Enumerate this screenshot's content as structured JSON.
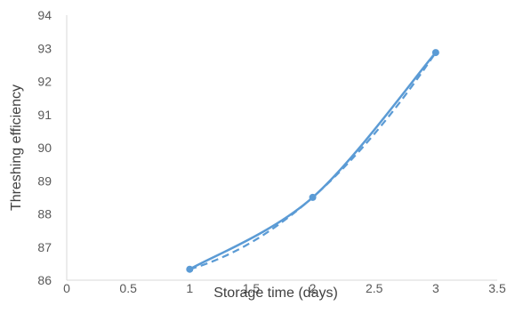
{
  "chart_data": {
    "type": "line",
    "title": "",
    "xlabel": "Storage time (days)",
    "ylabel": "Threshing efficiency",
    "xlim": [
      0,
      3.5
    ],
    "ylim": [
      86,
      94
    ],
    "x_ticks": [
      0,
      0.5,
      1,
      1.5,
      2,
      2.5,
      3,
      3.5
    ],
    "x_tick_labels": [
      "0",
      "0.5",
      "1",
      "1.5",
      "2",
      "2.5",
      "3",
      "3.5"
    ],
    "y_ticks": [
      86,
      87,
      88,
      89,
      90,
      91,
      92,
      93,
      94
    ],
    "y_tick_labels": [
      "86",
      "87",
      "88",
      "89",
      "90",
      "91",
      "92",
      "93",
      "94"
    ],
    "grid": false,
    "legend": "none",
    "series": [
      {
        "style": "solid-smooth-with-markers",
        "color": "#5b9bd5",
        "points": [
          [
            1,
            86.33
          ],
          [
            2,
            88.5
          ],
          [
            3,
            92.87
          ]
        ]
      },
      {
        "style": "dashed-trendline",
        "color": "#5b9bd5",
        "kind": "polynomial-order-2",
        "points": [
          [
            1,
            86.33
          ],
          [
            2,
            88.5
          ],
          [
            3,
            92.87
          ]
        ]
      }
    ]
  }
}
